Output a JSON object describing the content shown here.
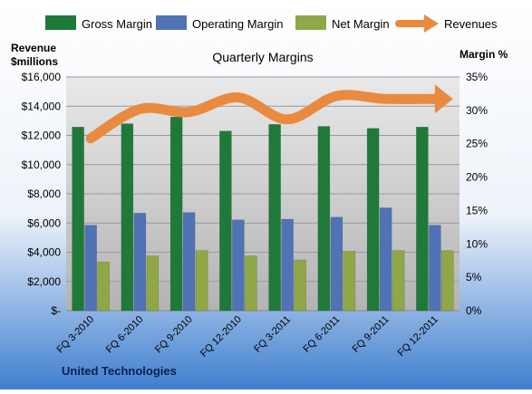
{
  "chart_data": {
    "type": "bar",
    "title": "Quarterly Margins",
    "company_label": "United Technologies",
    "left_axis_title": [
      "Revenue",
      "$millions"
    ],
    "right_axis_title": "Margin %",
    "categories": [
      "FQ 3-2010",
      "FQ 6-2010",
      "FQ 9-2010",
      "FQ 12-2010",
      "FQ 3-2011",
      "FQ 6-2011",
      "FQ 9-2011",
      "FQ 12-2011"
    ],
    "series": [
      {
        "name": "Gross Margin",
        "axis": "right",
        "unit": "%",
        "color": "#1f7a3a",
        "values": [
          27.5,
          28.0,
          29.0,
          26.9,
          27.9,
          27.6,
          27.3,
          27.5
        ]
      },
      {
        "name": "Operating Margin",
        "axis": "right",
        "unit": "%",
        "color": "#4f73b5",
        "values": [
          12.8,
          14.6,
          14.7,
          13.6,
          13.7,
          14.0,
          15.4,
          12.8
        ]
      },
      {
        "name": "Net Margin",
        "axis": "right",
        "unit": "%",
        "color": "#8fa845",
        "values": [
          7.3,
          8.2,
          9.0,
          8.2,
          7.6,
          8.9,
          9.0,
          9.0
        ]
      },
      {
        "name": "Revenues",
        "axis": "left",
        "unit": "$millions",
        "type": "line",
        "color": "#ea8a3f",
        "values": [
          11800,
          13800,
          13600,
          14600,
          13100,
          14700,
          14500,
          14500
        ]
      }
    ],
    "left_axis": {
      "min": 0,
      "max": 16000,
      "step": 2000,
      "tick_labels": [
        "$-",
        "$2,000",
        "$4,000",
        "$6,000",
        "$8,000",
        "$10,000",
        "$12,000",
        "$14,000",
        "$16,000"
      ]
    },
    "right_axis": {
      "min": 0,
      "max": 35,
      "step": 5,
      "tick_labels": [
        "0%",
        "5%",
        "10%",
        "15%",
        "20%",
        "25%",
        "30%",
        "35%"
      ]
    },
    "grid": true,
    "legend_position": "top"
  }
}
